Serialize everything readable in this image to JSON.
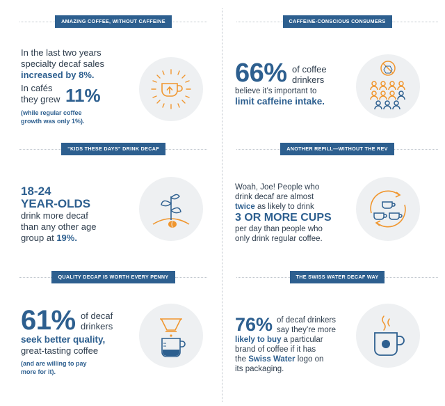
{
  "colors": {
    "accent": "#2d5f8f",
    "orange": "#f0962e",
    "text": "#2f3e4e",
    "circle": "#eef0f2"
  },
  "panel1": {
    "heading": "AMAZING COFFEE, WITHOUT CAFFEINE",
    "line1": "In the last two years",
    "line2": "specialty decaf sales",
    "line3": "increased by 8%.",
    "cafes_line1": "In cafés",
    "cafes_line2": "they grew",
    "stat": "11%",
    "note_line1": "(while regular coffee",
    "note_line2": "growth was only 1%).",
    "icon": "glowing-coffee-cup-icon"
  },
  "panel2": {
    "heading": "CAFFEINE-CONSCIOUS CONSUMERS",
    "stat": "66%",
    "line1": "of coffee",
    "line2": "drinkers",
    "line3": "believe it’s important to",
    "line4": "limit caffeine intake.",
    "icon": "no-caffeine-people-icon"
  },
  "panel3": {
    "heading": "“KIDS THESE DAYS” DRINK DECAF",
    "stat_line1": "18-24",
    "stat_line2": "YEAR-OLDS",
    "line1": "drink more decaf",
    "line2": "than any other age",
    "line3": "group at ",
    "line3_stat": "19%.",
    "icon": "coffee-sprout-icon"
  },
  "panel4": {
    "heading": "ANOTHER REFILL—WITHOUT THE REV",
    "line1": "Woah, Joe! People who",
    "line2": "drink decaf are almost",
    "line3_bold": "twice",
    "line3_rest": " as likely to drink",
    "stat": "3 OR MORE CUPS",
    "line4": "per day than people who",
    "line5": "only drink regular coffee.",
    "icon": "refill-cups-icon"
  },
  "panel5": {
    "heading": "QUALITY DECAF IS WORTH EVERY PENNY",
    "stat": "61%",
    "line1": "of decaf",
    "line2": "drinkers",
    "line3": "seek better quality,",
    "line4": "great-tasting coffee",
    "note_line1": "(and are willing to pay",
    "note_line2": "more for it).",
    "icon": "pour-over-icon"
  },
  "panel6": {
    "heading": "THE SWISS WATER DECAF WAY",
    "stat": "76%",
    "line1": "of decaf drinkers",
    "line2": "say they’re more",
    "line3_bold": "likely to buy",
    "line3_rest": " a particular",
    "line4": "brand of coffee if it has",
    "line5_pre": "the ",
    "line5_bold": "Swiss Water",
    "line5_rest": " logo on",
    "line6": "its packaging.",
    "icon": "swiss-water-mug-icon"
  }
}
